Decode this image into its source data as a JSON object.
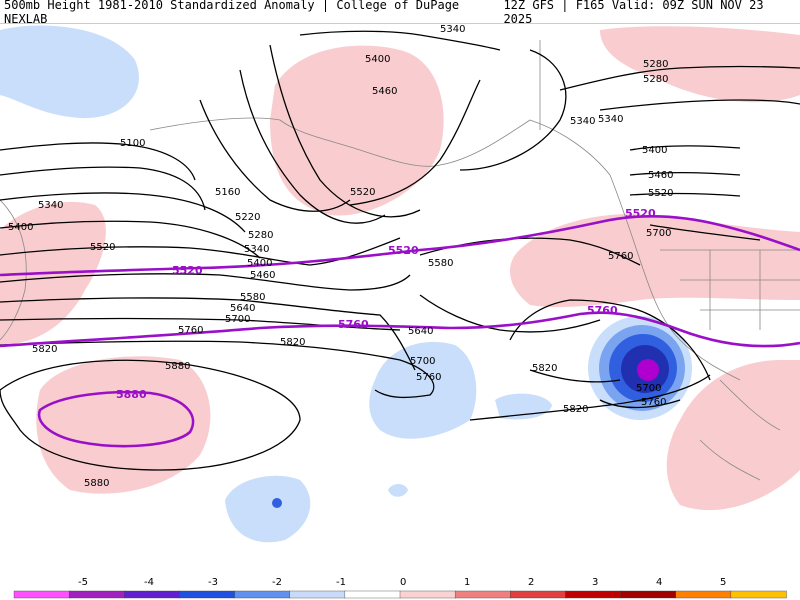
{
  "header": {
    "left_title": "500mb Height 1981-2010 Standardized Anomaly | College of DuPage NEXLAB",
    "right_title": "12Z GFS | F165 Valid: 09Z SUN NOV 23 2025"
  },
  "contours": {
    "black_labels": [
      "5340",
      "5280",
      "5280",
      "5400",
      "5460",
      "5100",
      "5340",
      "5340",
      "5400",
      "5460",
      "5520",
      "5520",
      "5160",
      "5220",
      "5280",
      "5340",
      "5400",
      "5460",
      "5520",
      "5580",
      "5640",
      "5700",
      "5760",
      "5820",
      "5580",
      "5760",
      "5640",
      "5700",
      "5760",
      "5820",
      "5880",
      "5880",
      "5820",
      "5700",
      "5760",
      "5820",
      "5700",
      "5400",
      "5340"
    ],
    "purple_labels": [
      "5520",
      "5520",
      "5520",
      "5760",
      "5760",
      "5880"
    ]
  },
  "colorbar": {
    "ticks": [
      "-5",
      "-4",
      "-3",
      "-2",
      "-1",
      "0",
      "1",
      "2",
      "3",
      "4",
      "5"
    ],
    "colors": [
      "#ff4fff",
      "#a020c0",
      "#6020d0",
      "#2050e0",
      "#6090f0",
      "#c8dcfa",
      "#ffffff",
      "#fad2d2",
      "#f08080",
      "#e04040",
      "#c00000",
      "#a00000",
      "#ff8000",
      "#ffc000"
    ]
  },
  "colors": {
    "neg_light": "#c9defa",
    "neg_mid": "#7aa4f0",
    "neg_dark": "#3060e0",
    "neg_deep": "#2030b0",
    "neg_extreme": "#b000d0",
    "pos_light": "#f9cdd0",
    "purple_contour": "#9a10c8"
  }
}
